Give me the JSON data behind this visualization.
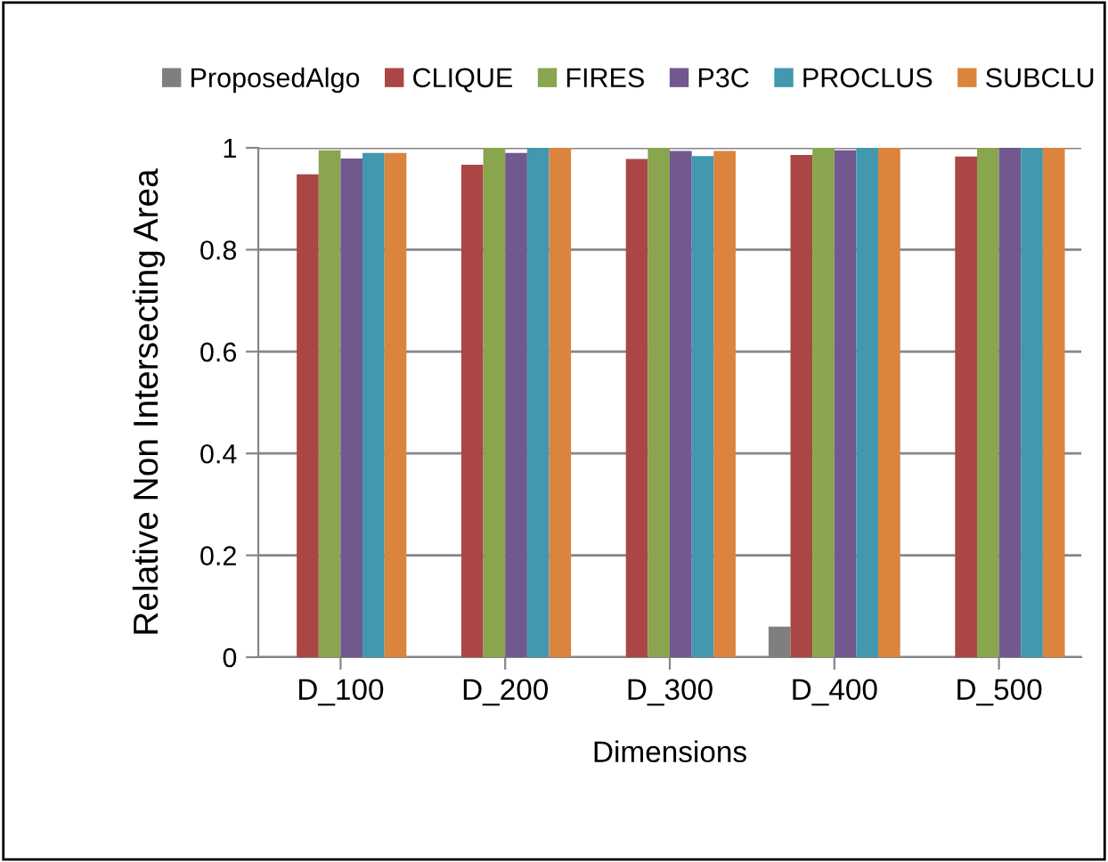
{
  "chart_data": {
    "type": "bar",
    "xlabel": "Dimensions",
    "ylabel": "Relative Non Intersecting Area",
    "categories": [
      "D_100",
      "D_200",
      "D_300",
      "D_400",
      "D_500"
    ],
    "series": [
      {
        "name": "ProposedAlgo",
        "color": "#7f7f7f",
        "values": [
          0,
          0,
          0,
          0.06,
          0
        ]
      },
      {
        "name": "CLIQUE",
        "color": "#aa4644",
        "values": [
          0.948,
          0.967,
          0.978,
          0.986,
          0.983
        ]
      },
      {
        "name": "FIRES",
        "color": "#89a54e",
        "values": [
          0.995,
          1,
          1,
          1,
          1
        ]
      },
      {
        "name": "P3C",
        "color": "#71588f",
        "values": [
          0.979,
          0.99,
          0.994,
          0.995,
          1
        ]
      },
      {
        "name": "PROCLUS",
        "color": "#4198af",
        "values": [
          0.99,
          1,
          0.984,
          1,
          1
        ]
      },
      {
        "name": "SUBCLU",
        "color": "#db843d",
        "values": [
          0.99,
          1,
          0.994,
          1,
          1
        ]
      }
    ],
    "ylim": [
      0,
      1
    ],
    "yticks": [
      0,
      0.2,
      0.4,
      0.6,
      0.8,
      1
    ],
    "grid": "y",
    "legend": "top"
  }
}
